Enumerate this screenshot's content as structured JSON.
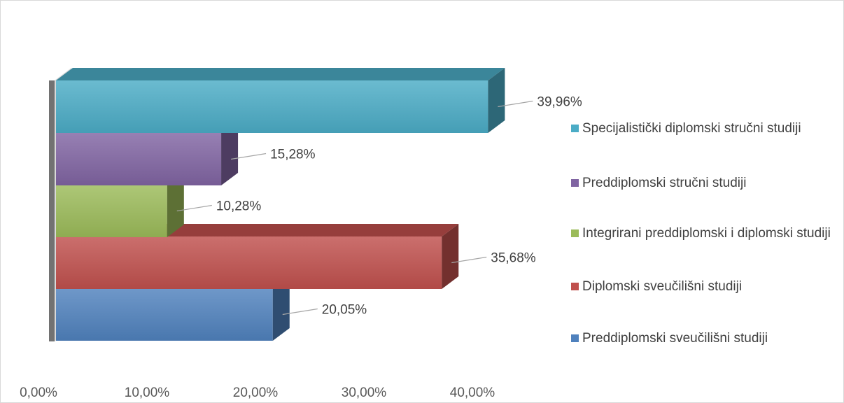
{
  "chart_data": {
    "type": "bar",
    "orientation": "horizontal",
    "style": "3d",
    "title": "",
    "xlabel": "",
    "ylabel": "",
    "xlim": [
      0,
      40
    ],
    "x_ticks": [
      "0,00%",
      "10,00%",
      "20,00%",
      "30,00%",
      "40,00%"
    ],
    "grid": false,
    "legend_position": "right",
    "series": [
      {
        "name": "Preddiplomski sveučilišni studiji",
        "value": 20.05,
        "label": "20,05%",
        "color": "#4f81bd"
      },
      {
        "name": "Diplomski sveučilišni studiji",
        "value": 35.68,
        "label": "35,68%",
        "color": "#c0504d"
      },
      {
        "name": "Integrirani preddiplomski i diplomski studiji",
        "value": 10.28,
        "label": "10,28%",
        "color": "#9bbb59"
      },
      {
        "name": "Preddiplomski stručni studiji",
        "value": 15.28,
        "label": "15,28%",
        "color": "#8064a2"
      },
      {
        "name": "Specijalistički diplomski stručni studiji",
        "value": 39.96,
        "label": "39,96%",
        "color": "#4bacc6"
      }
    ]
  },
  "legend": {
    "items": [
      {
        "label": "Specijalistički diplomski stručni studiji",
        "color": "#4bacc6"
      },
      {
        "label": "Preddiplomski stručni studiji",
        "color": "#8064a2"
      },
      {
        "label": "Integrirani preddiplomski i diplomski studiji",
        "color": "#9bbb59"
      },
      {
        "label": "Diplomski sveučilišni studiji",
        "color": "#c0504d"
      },
      {
        "label": "Preddiplomski sveučilišni studiji",
        "color": "#4f81bd"
      }
    ]
  }
}
